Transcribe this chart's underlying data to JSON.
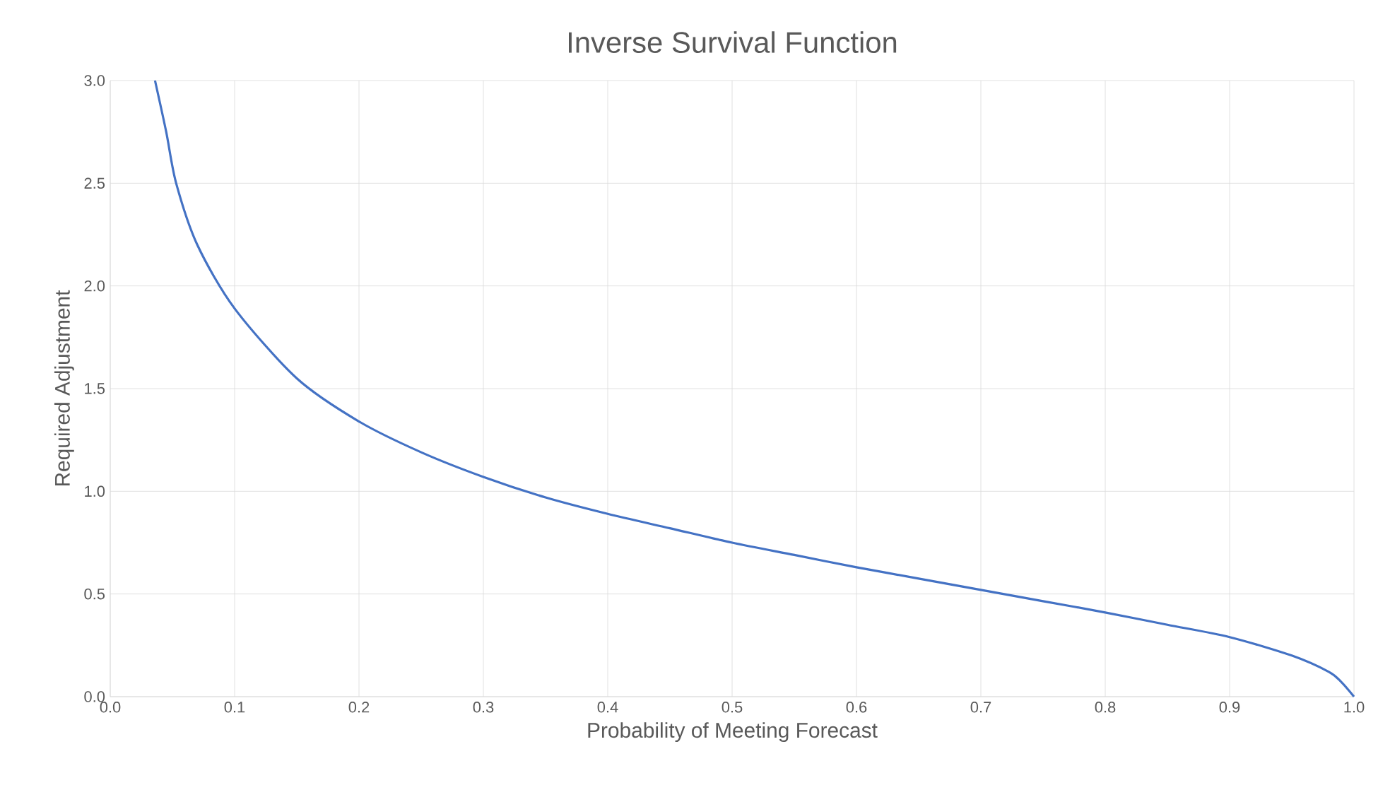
{
  "chart_data": {
    "type": "line",
    "title": "Inverse Survival Function",
    "xlabel": "Probability of Meeting Forecast",
    "ylabel": "Required Adjustment",
    "x": [
      0.036,
      0.045,
      0.053,
      0.07,
      0.1,
      0.15,
      0.2,
      0.25,
      0.3,
      0.35,
      0.4,
      0.45,
      0.5,
      0.55,
      0.6,
      0.65,
      0.7,
      0.75,
      0.8,
      0.85,
      0.9,
      0.95,
      0.98,
      0.99,
      1.0
    ],
    "series": [
      {
        "color": "#4472c4",
        "values": [
          3.0,
          2.75,
          2.5,
          2.2,
          1.89,
          1.55,
          1.34,
          1.19,
          1.07,
          0.97,
          0.89,
          0.82,
          0.75,
          0.69,
          0.63,
          0.575,
          0.52,
          0.465,
          0.41,
          0.35,
          0.29,
          0.2,
          0.12,
          0.07,
          0.0
        ]
      }
    ],
    "xlim": [
      0,
      1
    ],
    "ylim": [
      0,
      3
    ],
    "xticks": [
      {
        "value": 0,
        "label": "0.0"
      },
      0.1,
      0.2,
      0.3,
      0.4,
      0.5,
      0.6,
      0.7,
      0.8,
      0.9,
      {
        "value": 1,
        "label": "1.0"
      }
    ],
    "yticks": [
      {
        "value": 0,
        "label": "0.0"
      },
      0.5,
      {
        "value": 1,
        "label": "1.0"
      },
      1.5,
      {
        "value": 2,
        "label": "2.0"
      },
      2.5,
      {
        "value": 3,
        "label": "3.0"
      }
    ],
    "grid": true,
    "marker": "none",
    "line_style": "solid"
  }
}
